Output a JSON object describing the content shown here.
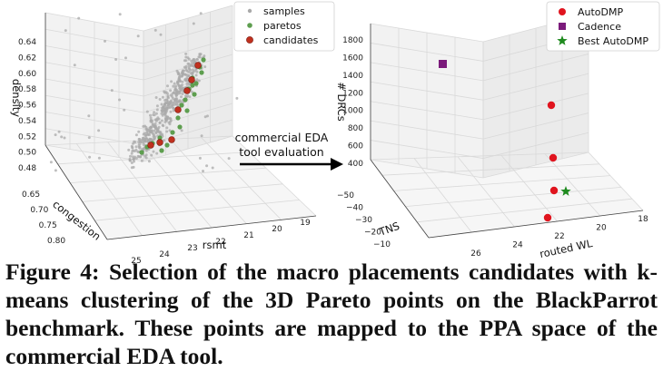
{
  "figure": {
    "arrow_label_line1": "commercial EDA",
    "arrow_label_line2": "tool evaluation",
    "caption": "Figure 4: Selection of the macro placements candidates with k-means clustering of the 3D Pareto points on the BlackParrot benchmark. These points are mapped to the PPA space of the commercial EDA tool."
  },
  "chart_data": [
    {
      "type": "scatter",
      "dimensions": "3d",
      "xlabel": "rsmt",
      "ylabel": "congestion",
      "zlabel": "density",
      "x_ticks": [
        "25",
        "24",
        "23",
        "22",
        "21",
        "20",
        "19"
      ],
      "y_ticks": [
        "0.65",
        "0.70",
        "0.75",
        "0.80"
      ],
      "z_ticks": [
        "0.48",
        "0.50",
        "0.52",
        "0.54",
        "0.56",
        "0.58",
        "0.60",
        "0.62",
        "0.64"
      ],
      "legend_position": "top-right",
      "series": [
        {
          "name": "samples",
          "color": "#a9a9a9",
          "marker": "dot"
        },
        {
          "name": "paretos",
          "color": "#5e9e4f",
          "marker": "circle"
        },
        {
          "name": "candidates",
          "color": "#c0301e",
          "marker": "circle"
        }
      ]
    },
    {
      "type": "scatter",
      "dimensions": "3d",
      "xlabel": "routed WL",
      "ylabel": "TNS",
      "zlabel": "# DRCs",
      "x_ticks": [
        "26",
        "24",
        "22",
        "20",
        "18"
      ],
      "y_ticks": [
        "−50",
        "−40",
        "−30",
        "−20",
        "−10"
      ],
      "z_ticks": [
        "400",
        "600",
        "800",
        "1000",
        "1200",
        "1400",
        "1600",
        "1800"
      ],
      "legend_position": "top-right",
      "series": [
        {
          "name": "AutoDMP",
          "color": "#e0141e",
          "marker": "circle"
        },
        {
          "name": "Cadence",
          "color": "#7b1a7b",
          "marker": "square"
        },
        {
          "name": "Best AutoDMP",
          "color": "#1e8a1e",
          "marker": "star"
        }
      ]
    }
  ]
}
